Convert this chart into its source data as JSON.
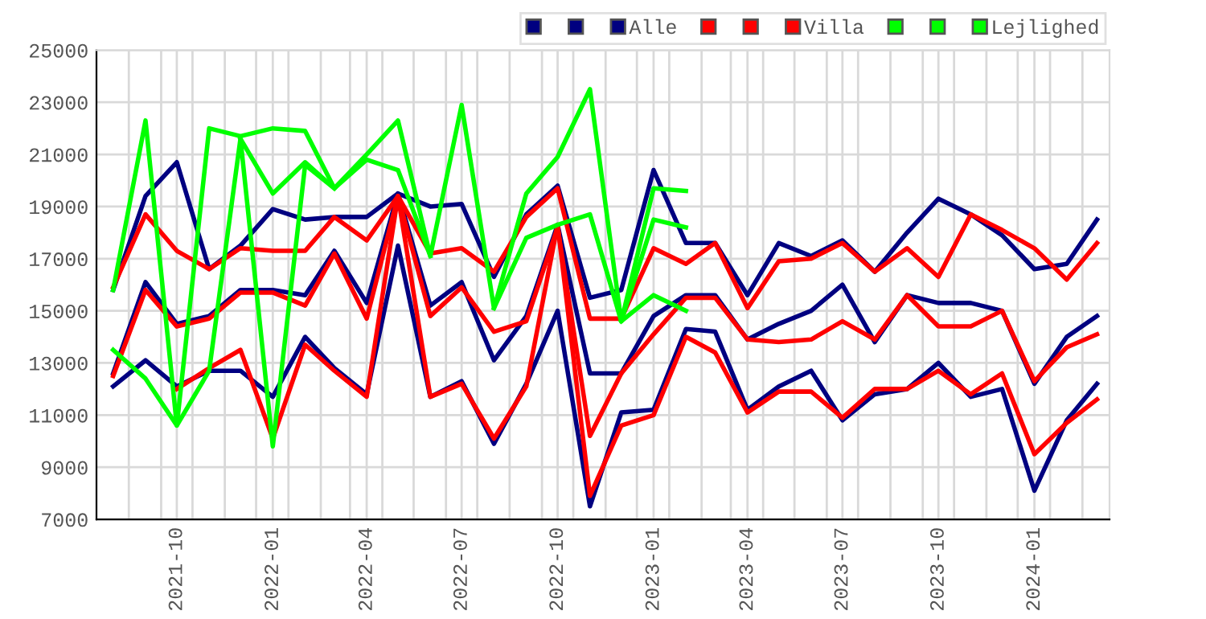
{
  "chart_data": {
    "type": "line",
    "x": [
      "2021-08",
      "2021-09",
      "2021-10",
      "2021-11",
      "2021-12",
      "2022-01",
      "2022-02",
      "2022-03",
      "2022-04",
      "2022-05",
      "2022-06",
      "2022-07",
      "2022-08",
      "2022-09",
      "2022-10",
      "2022-11",
      "2022-12",
      "2023-01",
      "2023-02",
      "2023-03",
      "2023-04",
      "2023-05",
      "2023-06",
      "2023-07",
      "2023-08",
      "2023-09",
      "2023-10",
      "2023-11",
      "2023-12",
      "2024-01",
      "2024-02",
      "2024-03"
    ],
    "series": [
      {
        "color": "#000080",
        "values": [
          15800,
          19400,
          20700,
          16600,
          17500,
          18900,
          18500,
          18600,
          18600,
          19500,
          19000,
          19100,
          16300,
          18700,
          19800,
          15500,
          15800,
          20400,
          17600,
          17600,
          15600,
          17600,
          17100,
          17700,
          16500,
          18000,
          19300,
          18700,
          17900,
          16600,
          16800,
          18500
        ]
      },
      {
        "color": "#000080",
        "values": [
          12600,
          16100,
          14500,
          14800,
          15800,
          15800,
          15600,
          17300,
          15300,
          19500,
          15200,
          16100,
          13100,
          14800,
          18300,
          12600,
          12600,
          14800,
          15600,
          15600,
          13900,
          14500,
          15000,
          16000,
          13800,
          15600,
          15300,
          15300,
          15000,
          12200,
          14000,
          14800
        ]
      },
      {
        "name": "Alle",
        "color": "#000080",
        "values": [
          12100,
          13100,
          12100,
          12700,
          12700,
          11700,
          14000,
          12800,
          11800,
          17500,
          11700,
          12300,
          9900,
          12200,
          15000,
          7500,
          11100,
          11200,
          14300,
          14200,
          11200,
          12100,
          12700,
          10800,
          11800,
          12000,
          13000,
          11700,
          12000,
          8100,
          10800,
          12200
        ]
      },
      {
        "color": "#ff0000",
        "values": [
          15900,
          18700,
          17300,
          16600,
          17400,
          17300,
          17300,
          18600,
          17700,
          19400,
          17200,
          17400,
          16500,
          18600,
          19700,
          14700,
          14700,
          17400,
          16800,
          17600,
          15100,
          16900,
          17000,
          17600,
          16500,
          17400,
          16300,
          18700,
          18100,
          17400,
          16200,
          17600
        ]
      },
      {
        "color": "#ff0000",
        "values": [
          12500,
          15800,
          14400,
          14700,
          15700,
          15700,
          15200,
          17200,
          14700,
          19400,
          14800,
          15900,
          14200,
          14600,
          18200,
          10200,
          12600,
          14100,
          15500,
          15500,
          13900,
          13800,
          13900,
          14600,
          13900,
          15600,
          14400,
          14400,
          15000,
          12300,
          13600,
          14100
        ]
      },
      {
        "name": "Villa",
        "color": "#ff0000",
        "values": [
          null,
          null,
          12000,
          12800,
          13500,
          10100,
          13700,
          12700,
          11700,
          19400,
          11700,
          12200,
          10100,
          12100,
          18300,
          7900,
          10600,
          11000,
          14000,
          13400,
          11100,
          11900,
          11900,
          10900,
          12000,
          12000,
          12700,
          11800,
          12600,
          9500,
          10700,
          11600
        ]
      },
      {
        "color": "#00ff00",
        "values": [
          15800,
          22300,
          10600,
          22000,
          21700,
          22000,
          21900,
          19700,
          21000,
          22300,
          17100,
          22900,
          15100,
          19500,
          20900,
          23500,
          14600,
          19700,
          19600,
          null,
          null,
          null,
          null,
          null,
          null,
          null,
          null,
          null,
          null,
          null,
          null,
          null
        ]
      },
      {
        "color": "#00ff00",
        "values": [
          null,
          null,
          null,
          null,
          21600,
          19500,
          20700,
          19700,
          20800,
          20400,
          17100,
          null,
          15100,
          17800,
          18300,
          18700,
          14600,
          18500,
          18200,
          null,
          null,
          null,
          null,
          null,
          null,
          null,
          null,
          null,
          null,
          null,
          null,
          null
        ]
      },
      {
        "name": "Lejlighed",
        "color": "#00ff00",
        "values": [
          13500,
          12400,
          10600,
          12700,
          21600,
          9800,
          20600,
          19700,
          null,
          null,
          null,
          null,
          null,
          null,
          null,
          null,
          14600,
          15600,
          15000,
          null,
          null,
          null,
          null,
          null,
          null,
          null,
          null,
          null,
          null,
          null,
          null,
          null
        ]
      }
    ],
    "xlim": [
      "2021-07-16",
      "2024-03-13"
    ],
    "xticks": [
      {
        "value": "2021-10",
        "label": "2021-10"
      },
      {
        "value": "2022-01",
        "label": "2022-01"
      },
      {
        "value": "2022-04",
        "label": "2022-04"
      },
      {
        "value": "2022-07",
        "label": "2022-07"
      },
      {
        "value": "2022-10",
        "label": "2022-10"
      },
      {
        "value": "2023-01",
        "label": "2023-01"
      },
      {
        "value": "2023-04",
        "label": "2023-04"
      },
      {
        "value": "2023-07",
        "label": "2023-07"
      },
      {
        "value": "2023-10",
        "label": "2023-10"
      },
      {
        "value": "2024-01",
        "label": "2024-01"
      },
      {
        "value": "2021-08-16",
        "label": null
      },
      {
        "value": "2021-09-16",
        "label": null
      },
      {
        "value": "2021-10-16",
        "label": null
      },
      {
        "value": "2021-11-16",
        "label": null
      },
      {
        "value": "2021-12-16",
        "label": null
      },
      {
        "value": "2022-01-16",
        "label": null
      },
      {
        "value": "2022-02-16",
        "label": null
      },
      {
        "value": "2022-03-16",
        "label": null
      },
      {
        "value": "2022-04-16",
        "label": null
      },
      {
        "value": "2022-05-16",
        "label": null
      },
      {
        "value": "2022-06-16",
        "label": null
      },
      {
        "value": "2022-07-16",
        "label": null
      },
      {
        "value": "2022-08-16",
        "label": null
      },
      {
        "value": "2022-09-16",
        "label": null
      },
      {
        "value": "2022-10-16",
        "label": null
      },
      {
        "value": "2022-11-16",
        "label": null
      },
      {
        "value": "2022-12-16",
        "label": null
      },
      {
        "value": "2023-01-16",
        "label": null
      },
      {
        "value": "2023-02-16",
        "label": null
      },
      {
        "value": "2023-03-16",
        "label": null
      },
      {
        "value": "2023-04-16",
        "label": null
      },
      {
        "value": "2023-05-16",
        "label": null
      },
      {
        "value": "2023-06-16",
        "label": null
      },
      {
        "value": "2023-07-16",
        "label": null
      },
      {
        "value": "2023-08-16",
        "label": null
      },
      {
        "value": "2023-09-16",
        "label": null
      },
      {
        "value": "2023-10-16",
        "label": null
      },
      {
        "value": "2023-11-16",
        "label": null
      },
      {
        "value": "2023-12-16",
        "label": null
      },
      {
        "value": "2024-01-16",
        "label": null
      },
      {
        "value": "2024-02-16",
        "label": null
      }
    ],
    "ylim": [
      7000,
      25000
    ],
    "yticks": [
      7000,
      9000,
      11000,
      13000,
      15000,
      17000,
      19000,
      21000,
      23000,
      25000
    ],
    "grid": true,
    "legend": "top right"
  }
}
